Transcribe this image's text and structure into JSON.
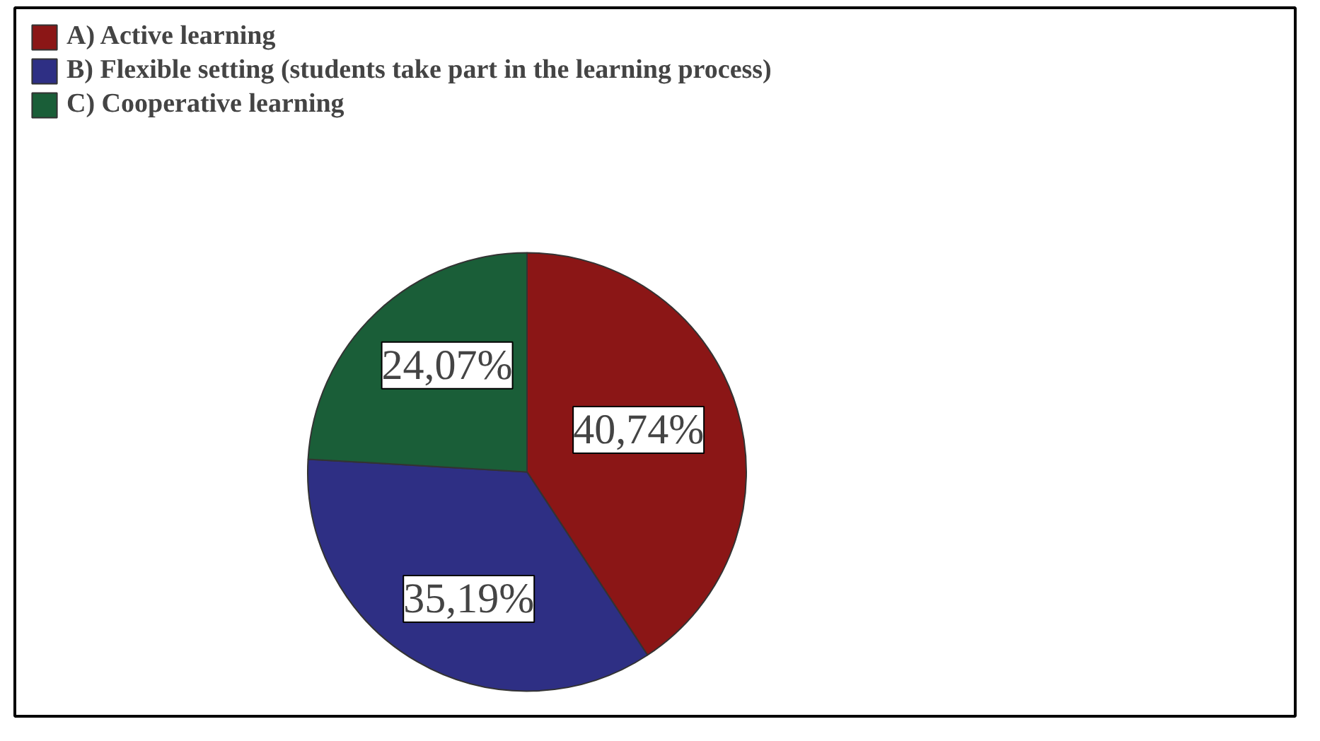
{
  "chart_data": {
    "type": "pie",
    "categories": [
      "A) Active learning",
      "B) Flexible setting (students take part in the learning process)",
      "C) Cooperative learning"
    ],
    "values": [
      40.74,
      35.19,
      24.07
    ],
    "colors": [
      "#8b1616",
      "#2e2f84",
      "#1a5e38"
    ],
    "value_labels": [
      "40,74%",
      "35,19%",
      "24,07%"
    ],
    "legend": "top left"
  }
}
